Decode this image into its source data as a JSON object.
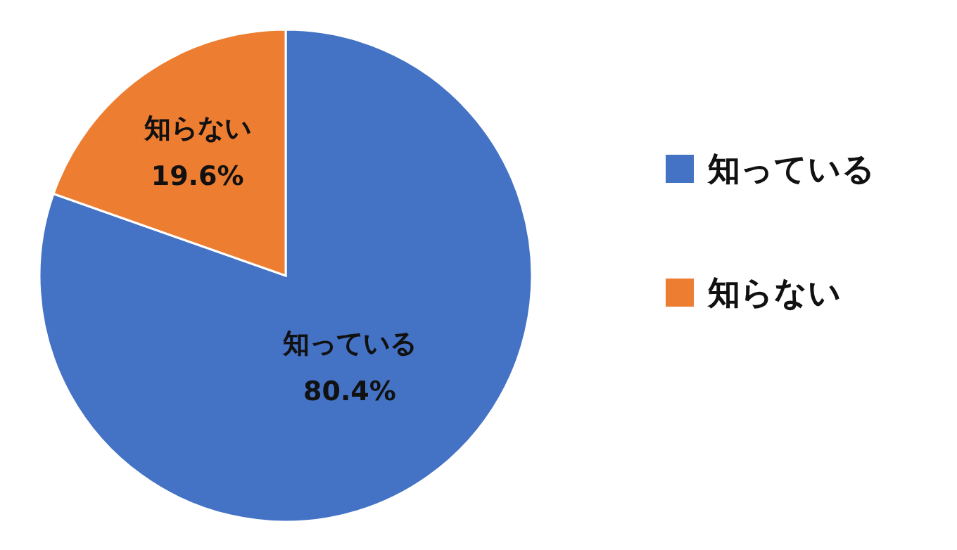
{
  "chart_data": {
    "type": "pie",
    "categories": [
      "知っている",
      "知らない"
    ],
    "values": [
      80.4,
      19.6
    ],
    "colors": [
      "#4472c4",
      "#ed7d31"
    ],
    "value_labels": [
      "80.4%",
      "19.6%"
    ],
    "legend": "right"
  }
}
